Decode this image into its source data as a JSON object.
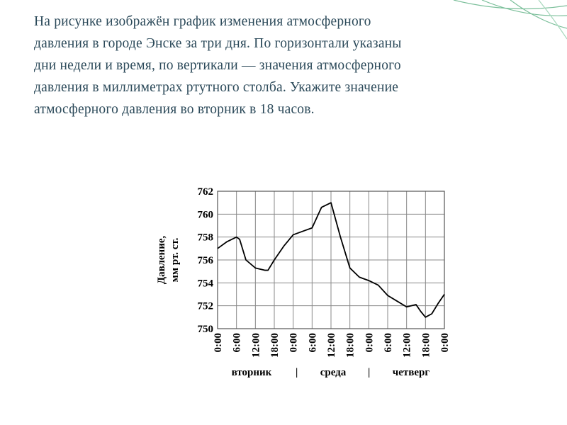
{
  "text": {
    "lines": [
      "На рисунке изображён график изменения атмосферного",
      "давления в городе Энске за три дня. По горизонтали указаны",
      "дни недели и время, по вертикали — значения атмосферного",
      "давления в миллиметрах ртутного столба. Укажите значение",
      "атмосферного давления во вторник в 18 часов."
    ]
  },
  "chart_data": {
    "type": "line",
    "y_label": [
      "Давление,",
      "мм рт. ст."
    ],
    "day_labels": [
      "вторник",
      "среда",
      "четверг"
    ],
    "x": [
      0,
      3,
      6,
      7,
      9,
      12,
      15,
      16,
      18,
      21,
      24,
      27,
      30,
      33,
      36,
      39,
      42,
      45,
      48,
      51,
      54,
      57,
      60,
      63,
      64.5,
      66,
      68,
      70,
      72
    ],
    "series": [
      {
        "color": "#000000",
        "values": [
          757,
          757.6,
          758,
          757.8,
          756,
          755.3,
          755.1,
          755.1,
          756,
          757.2,
          758.2,
          758.5,
          758.8,
          760.6,
          761,
          758,
          755.3,
          754.5,
          754.2,
          753.8,
          752.9,
          752.4,
          751.9,
          752.1,
          751.5,
          751,
          751.3,
          752.2,
          753
        ]
      }
    ],
    "xlim": [
      0,
      72
    ],
    "xticks": [
      {
        "value": 0,
        "label": "0:00"
      },
      {
        "value": 6,
        "label": "6:00"
      },
      {
        "value": 12,
        "label": "12:00"
      },
      {
        "value": 18,
        "label": "18:00"
      },
      {
        "value": 24,
        "label": "0:00"
      },
      {
        "value": 30,
        "label": "6:00"
      },
      {
        "value": 36,
        "label": "12:00"
      },
      {
        "value": 42,
        "label": "18:00"
      },
      {
        "value": 48,
        "label": "0:00"
      },
      {
        "value": 54,
        "label": "6:00"
      },
      {
        "value": 60,
        "label": "12:00"
      },
      {
        "value": 66,
        "label": "18:00"
      },
      {
        "value": 72,
        "label": "0:00"
      }
    ],
    "ylim": [
      750,
      762
    ],
    "yticks": [
      750,
      752,
      754,
      756,
      758,
      760,
      762
    ],
    "grid": true
  }
}
